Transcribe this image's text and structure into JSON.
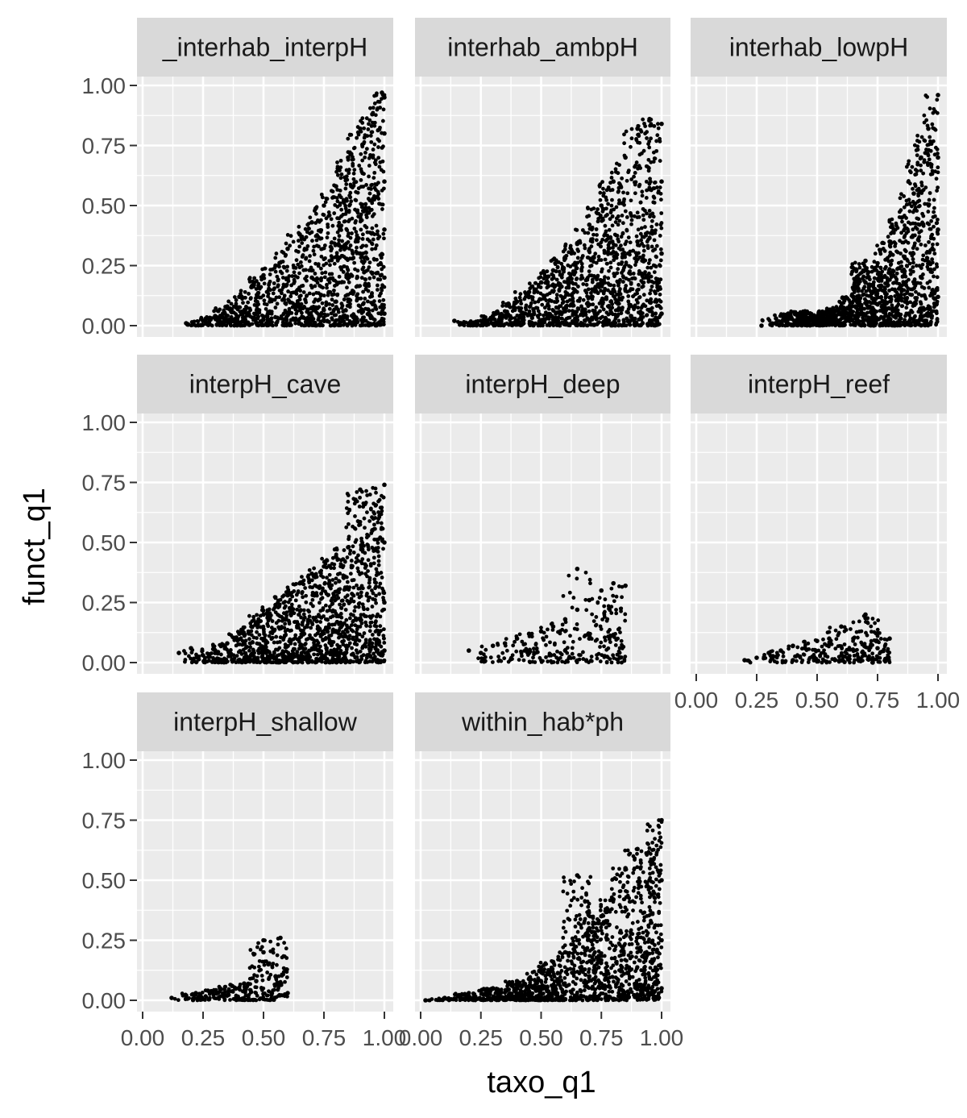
{
  "chart_data": {
    "type": "scatter",
    "xlabel": "taxo_q1",
    "ylabel": "funct_q1",
    "xlim": [
      0,
      1
    ],
    "ylim": [
      0,
      1
    ],
    "x_ticks": [
      "0.00",
      "0.25",
      "0.50",
      "0.75",
      "1.00"
    ],
    "y_ticks": [
      "0.00",
      "0.25",
      "0.50",
      "0.75",
      "1.00"
    ],
    "grid": true,
    "legend": "none",
    "colors": {
      "panel_bg": "#ebebeb",
      "strip_bg": "#d9d9d9",
      "grid": "#ffffff",
      "point": "#000000",
      "text": "#4d4d4d"
    },
    "facets": [
      {
        "name": "_interhab_interpH",
        "points": [
          {
            "x": 0.18,
            "y": 0.01
          },
          {
            "x": 0.25,
            "y": 0.02
          },
          {
            "x": 0.3,
            "y": 0.04
          },
          {
            "x": 0.35,
            "y": 0.08
          },
          {
            "x": 0.4,
            "y": 0.12
          },
          {
            "x": 0.45,
            "y": 0.16
          },
          {
            "x": 0.5,
            "y": 0.21
          },
          {
            "x": 0.55,
            "y": 0.25
          },
          {
            "x": 0.6,
            "y": 0.32
          },
          {
            "x": 0.65,
            "y": 0.38
          },
          {
            "x": 0.7,
            "y": 0.43
          },
          {
            "x": 0.75,
            "y": 0.5
          },
          {
            "x": 0.8,
            "y": 0.58
          },
          {
            "x": 0.85,
            "y": 0.7
          },
          {
            "x": 0.9,
            "y": 0.82
          },
          {
            "x": 0.95,
            "y": 0.88
          },
          {
            "x": 0.99,
            "y": 0.97
          },
          {
            "x": 1.0,
            "y": 0.95
          },
          {
            "x": 1.0,
            "y": 0.8
          },
          {
            "x": 1.0,
            "y": 0.6
          },
          {
            "x": 1.0,
            "y": 0.4
          },
          {
            "x": 1.0,
            "y": 0.2
          },
          {
            "x": 1.0,
            "y": 0.05
          },
          {
            "x": 0.8,
            "y": 0.1
          },
          {
            "x": 0.6,
            "y": 0.05
          },
          {
            "x": 0.9,
            "y": 0.3
          },
          {
            "x": 0.7,
            "y": 0.2
          }
        ]
      },
      {
        "name": "interhab_ambpH",
        "points": [
          {
            "x": 0.14,
            "y": 0.02
          },
          {
            "x": 0.2,
            "y": 0.01
          },
          {
            "x": 0.25,
            "y": 0.02
          },
          {
            "x": 0.3,
            "y": 0.04
          },
          {
            "x": 0.35,
            "y": 0.06
          },
          {
            "x": 0.4,
            "y": 0.1
          },
          {
            "x": 0.45,
            "y": 0.14
          },
          {
            "x": 0.5,
            "y": 0.18
          },
          {
            "x": 0.55,
            "y": 0.23
          },
          {
            "x": 0.6,
            "y": 0.28
          },
          {
            "x": 0.65,
            "y": 0.34
          },
          {
            "x": 0.7,
            "y": 0.42
          },
          {
            "x": 0.75,
            "y": 0.5
          },
          {
            "x": 0.8,
            "y": 0.6
          },
          {
            "x": 0.85,
            "y": 0.7
          },
          {
            "x": 0.9,
            "y": 0.82
          },
          {
            "x": 0.95,
            "y": 0.86
          },
          {
            "x": 1.0,
            "y": 0.84
          },
          {
            "x": 1.0,
            "y": 0.6
          },
          {
            "x": 1.0,
            "y": 0.3
          },
          {
            "x": 1.0,
            "y": 0.05
          },
          {
            "x": 0.8,
            "y": 0.15
          },
          {
            "x": 0.6,
            "y": 0.06
          },
          {
            "x": 0.9,
            "y": 0.35
          }
        ]
      },
      {
        "name": "interhab_lowpH",
        "points": [
          {
            "x": 0.27,
            "y": 0.0
          },
          {
            "x": 0.33,
            "y": 0.03
          },
          {
            "x": 0.38,
            "y": 0.05
          },
          {
            "x": 0.45,
            "y": 0.06
          },
          {
            "x": 0.5,
            "y": 0.04
          },
          {
            "x": 0.55,
            "y": 0.06
          },
          {
            "x": 0.6,
            "y": 0.08
          },
          {
            "x": 0.65,
            "y": 0.12
          },
          {
            "x": 0.7,
            "y": 0.18
          },
          {
            "x": 0.75,
            "y": 0.26
          },
          {
            "x": 0.8,
            "y": 0.35
          },
          {
            "x": 0.85,
            "y": 0.45
          },
          {
            "x": 0.9,
            "y": 0.55
          },
          {
            "x": 0.93,
            "y": 0.7
          },
          {
            "x": 0.96,
            "y": 0.82
          },
          {
            "x": 1.0,
            "y": 0.96
          },
          {
            "x": 1.0,
            "y": 0.7
          },
          {
            "x": 1.0,
            "y": 0.4
          },
          {
            "x": 1.0,
            "y": 0.12
          },
          {
            "x": 0.85,
            "y": 0.15
          },
          {
            "x": 0.7,
            "y": 0.27
          }
        ]
      },
      {
        "name": "interpH_cave",
        "points": [
          {
            "x": 0.15,
            "y": 0.04
          },
          {
            "x": 0.2,
            "y": 0.06
          },
          {
            "x": 0.25,
            "y": 0.03
          },
          {
            "x": 0.3,
            "y": 0.05
          },
          {
            "x": 0.35,
            "y": 0.08
          },
          {
            "x": 0.4,
            "y": 0.12
          },
          {
            "x": 0.45,
            "y": 0.15
          },
          {
            "x": 0.5,
            "y": 0.2
          },
          {
            "x": 0.55,
            "y": 0.24
          },
          {
            "x": 0.6,
            "y": 0.28
          },
          {
            "x": 0.65,
            "y": 0.33
          },
          {
            "x": 0.7,
            "y": 0.37
          },
          {
            "x": 0.75,
            "y": 0.4
          },
          {
            "x": 0.8,
            "y": 0.44
          },
          {
            "x": 0.85,
            "y": 0.48
          },
          {
            "x": 0.9,
            "y": 0.72
          },
          {
            "x": 0.95,
            "y": 0.55
          },
          {
            "x": 1.0,
            "y": 0.74
          },
          {
            "x": 1.0,
            "y": 0.5
          },
          {
            "x": 1.0,
            "y": 0.25
          },
          {
            "x": 1.0,
            "y": 0.05
          },
          {
            "x": 0.7,
            "y": 0.1
          },
          {
            "x": 0.5,
            "y": 0.05
          }
        ]
      },
      {
        "name": "interpH_deep",
        "points": [
          {
            "x": 0.2,
            "y": 0.05
          },
          {
            "x": 0.25,
            "y": 0.04
          },
          {
            "x": 0.3,
            "y": 0.07
          },
          {
            "x": 0.35,
            "y": 0.08
          },
          {
            "x": 0.4,
            "y": 0.1
          },
          {
            "x": 0.45,
            "y": 0.12
          },
          {
            "x": 0.5,
            "y": 0.13
          },
          {
            "x": 0.55,
            "y": 0.15
          },
          {
            "x": 0.6,
            "y": 0.18
          },
          {
            "x": 0.65,
            "y": 0.22
          },
          {
            "x": 0.7,
            "y": 0.26
          },
          {
            "x": 0.75,
            "y": 0.3
          },
          {
            "x": 0.8,
            "y": 0.33
          },
          {
            "x": 0.85,
            "y": 0.32
          },
          {
            "x": 0.7,
            "y": 0.1
          },
          {
            "x": 0.6,
            "y": 0.05
          },
          {
            "x": 0.45,
            "y": 0.04
          },
          {
            "x": 0.65,
            "y": 0.39
          }
        ]
      },
      {
        "name": "interpH_reef",
        "points": [
          {
            "x": 0.2,
            "y": 0.01
          },
          {
            "x": 0.25,
            "y": 0.02
          },
          {
            "x": 0.3,
            "y": 0.04
          },
          {
            "x": 0.35,
            "y": 0.05
          },
          {
            "x": 0.4,
            "y": 0.07
          },
          {
            "x": 0.45,
            "y": 0.06
          },
          {
            "x": 0.5,
            "y": 0.09
          },
          {
            "x": 0.55,
            "y": 0.1
          },
          {
            "x": 0.6,
            "y": 0.15
          },
          {
            "x": 0.65,
            "y": 0.1
          },
          {
            "x": 0.7,
            "y": 0.2
          },
          {
            "x": 0.75,
            "y": 0.06
          },
          {
            "x": 0.8,
            "y": 0.1
          },
          {
            "x": 0.6,
            "y": 0.01
          },
          {
            "x": 0.4,
            "y": 0.01
          },
          {
            "x": 0.73,
            "y": 0.0
          }
        ]
      },
      {
        "name": "interpH_shallow",
        "points": [
          {
            "x": 0.12,
            "y": 0.01
          },
          {
            "x": 0.18,
            "y": 0.02
          },
          {
            "x": 0.22,
            "y": 0.03
          },
          {
            "x": 0.27,
            "y": 0.04
          },
          {
            "x": 0.32,
            "y": 0.05
          },
          {
            "x": 0.37,
            "y": 0.06
          },
          {
            "x": 0.42,
            "y": 0.07
          },
          {
            "x": 0.47,
            "y": 0.08
          },
          {
            "x": 0.5,
            "y": 0.2
          },
          {
            "x": 0.5,
            "y": 0.25
          },
          {
            "x": 0.52,
            "y": 0.15
          },
          {
            "x": 0.55,
            "y": 0.1
          },
          {
            "x": 0.57,
            "y": 0.26
          },
          {
            "x": 0.6,
            "y": 0.03
          },
          {
            "x": 0.35,
            "y": 0.02
          }
        ]
      },
      {
        "name": "within_hab*ph",
        "points": [
          {
            "x": 0.02,
            "y": 0.0
          },
          {
            "x": 0.1,
            "y": 0.01
          },
          {
            "x": 0.2,
            "y": 0.03
          },
          {
            "x": 0.3,
            "y": 0.05
          },
          {
            "x": 0.4,
            "y": 0.08
          },
          {
            "x": 0.5,
            "y": 0.12
          },
          {
            "x": 0.55,
            "y": 0.16
          },
          {
            "x": 0.6,
            "y": 0.2
          },
          {
            "x": 0.65,
            "y": 0.25
          },
          {
            "x": 0.7,
            "y": 0.3
          },
          {
            "x": 0.75,
            "y": 0.35
          },
          {
            "x": 0.8,
            "y": 0.42
          },
          {
            "x": 0.85,
            "y": 0.55
          },
          {
            "x": 0.9,
            "y": 0.63
          },
          {
            "x": 0.95,
            "y": 0.5
          },
          {
            "x": 1.0,
            "y": 0.75
          },
          {
            "x": 1.0,
            "y": 0.5
          },
          {
            "x": 1.0,
            "y": 0.25
          },
          {
            "x": 1.0,
            "y": 0.05
          },
          {
            "x": 0.65,
            "y": 0.52
          },
          {
            "x": 0.7,
            "y": 0.1
          }
        ]
      }
    ]
  }
}
